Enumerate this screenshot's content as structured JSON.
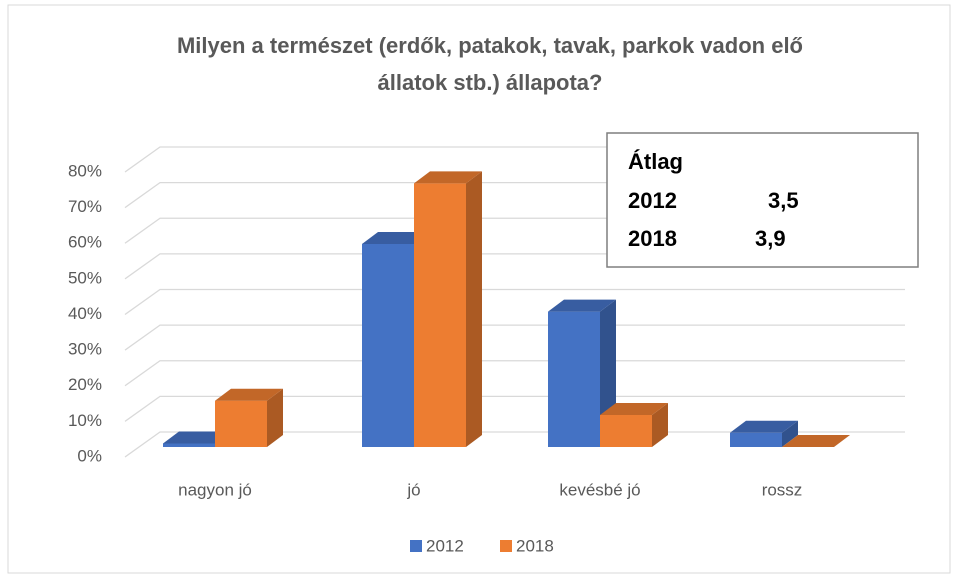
{
  "chart_data": {
    "type": "bar3d",
    "title": [
      "Milyen a természet (erdők, patakok, tavak, parkok vadon elő",
      "állatok stb.) állapota?"
    ],
    "categories": [
      "nagyon jó",
      "jó",
      "kevésbé jó",
      "rossz"
    ],
    "series": [
      {
        "name": "2012",
        "color": "#4472c4",
        "values": [
          1,
          57,
          38,
          4
        ]
      },
      {
        "name": "2018",
        "color": "#ed7d31",
        "values": [
          13,
          74,
          9,
          0
        ]
      }
    ],
    "ylim": [
      0,
      80
    ],
    "yticks": [
      {
        "value": 0,
        "label": "0%"
      },
      {
        "value": 10,
        "label": "10%"
      },
      {
        "value": 20,
        "label": "20%"
      },
      {
        "value": 30,
        "label": "30%"
      },
      {
        "value": 40,
        "label": "40%"
      },
      {
        "value": 50,
        "label": "50%"
      },
      {
        "value": 60,
        "label": "60%"
      },
      {
        "value": 70,
        "label": "70%"
      },
      {
        "value": 80,
        "label": "80%"
      }
    ],
    "grid": true,
    "legend": "bottom",
    "annotation": {
      "title": "Átlag",
      "rows": [
        [
          "2012",
          "3,5"
        ],
        [
          "2018",
          "3,9"
        ]
      ]
    }
  }
}
